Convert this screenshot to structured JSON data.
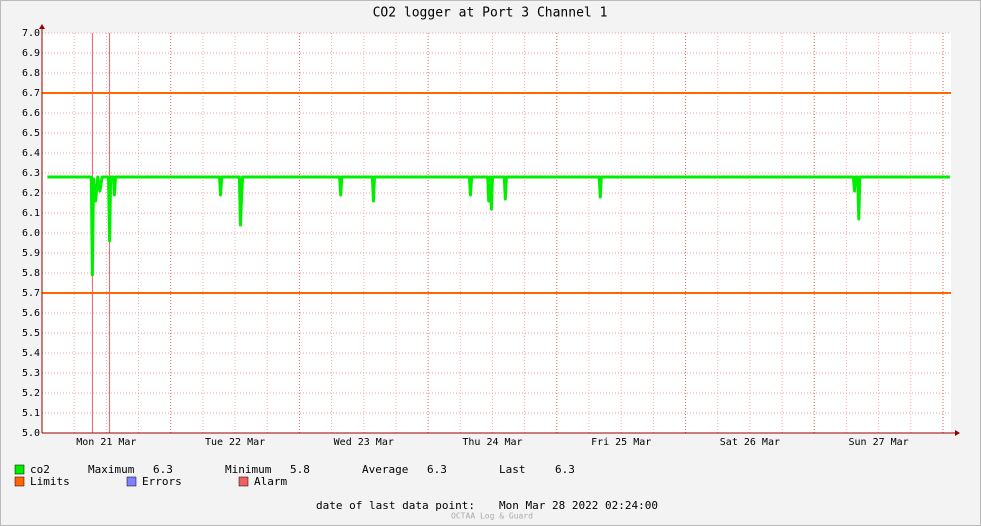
{
  "chart_data": {
    "type": "line",
    "title": "CO2 logger at Port 3 Channel 1",
    "xlim": [
      0,
      169.5
    ],
    "xticks": [
      {
        "value": 12,
        "label": "Mon 21 Mar"
      },
      {
        "value": 36,
        "label": "Tue 22 Mar"
      },
      {
        "value": 60,
        "label": "Wed 23 Mar"
      },
      {
        "value": 84,
        "label": "Thu 24 Mar"
      },
      {
        "value": 108,
        "label": "Fri 25 Mar"
      },
      {
        "value": 132,
        "label": "Sat 26 Mar"
      },
      {
        "value": 156,
        "label": "Sun 27 Mar"
      }
    ],
    "xgrid": [
      0,
      6,
      12,
      18,
      24,
      30,
      36,
      42,
      48,
      54,
      60,
      66,
      72,
      78,
      84,
      90,
      96,
      102,
      108,
      114,
      120,
      126,
      132,
      138,
      144,
      150,
      156,
      162,
      168
    ],
    "ylim": [
      5.0,
      7.0
    ],
    "yticks": [
      {
        "value": 5,
        "label": "5.0"
      },
      5.1,
      5.2,
      5.3,
      5.4,
      5.5,
      5.6,
      5.7,
      5.8,
      5.9,
      {
        "value": 6,
        "label": "6.0"
      },
      6.1,
      6.2,
      6.3,
      6.4,
      6.5,
      6.6,
      6.7,
      6.8,
      6.9,
      {
        "value": 7,
        "label": "7.0"
      }
    ],
    "grid": true,
    "x": [
      1,
      5,
      9.2,
      9.4,
      9.6,
      10,
      10.4,
      10.8,
      11.2,
      12.4,
      12.6,
      12.8,
      13.3,
      13.5,
      13.7,
      17,
      21,
      25,
      29,
      33.1,
      33.3,
      33.5,
      36.8,
      37,
      37.2,
      37.4,
      41,
      45,
      49,
      53,
      55.5,
      55.7,
      55.9,
      59,
      61.6,
      61.8,
      62,
      66,
      70,
      74,
      77,
      79.7,
      79.9,
      80.1,
      83.1,
      83.3,
      83.5,
      83.6,
      83.8,
      84,
      86.2,
      86.4,
      86.6,
      90,
      94,
      98,
      102,
      103.9,
      104.1,
      104.3,
      108,
      112,
      116,
      120,
      124,
      128,
      132,
      136,
      140,
      144,
      148,
      151.3,
      151.5,
      151.7,
      152.1,
      152.3,
      152.5,
      156,
      160,
      164,
      169.3
    ],
    "series": [
      {
        "name": "co2",
        "color": "#00ee00",
        "values": [
          6.28,
          6.28,
          6.28,
          5.79,
          6.27,
          6.16,
          6.28,
          6.21,
          6.28,
          6.28,
          5.96,
          6.28,
          6.28,
          6.19,
          6.28,
          6.28,
          6.28,
          6.28,
          6.28,
          6.28,
          6.19,
          6.28,
          6.28,
          6.04,
          6.17,
          6.28,
          6.28,
          6.28,
          6.28,
          6.28,
          6.28,
          6.19,
          6.28,
          6.28,
          6.28,
          6.16,
          6.28,
          6.28,
          6.28,
          6.28,
          6.28,
          6.28,
          6.19,
          6.28,
          6.28,
          6.16,
          6.28,
          6.28,
          6.12,
          6.28,
          6.28,
          6.17,
          6.28,
          6.28,
          6.28,
          6.28,
          6.28,
          6.28,
          6.18,
          6.28,
          6.28,
          6.28,
          6.28,
          6.28,
          6.28,
          6.28,
          6.28,
          6.28,
          6.28,
          6.28,
          6.28,
          6.28,
          6.21,
          6.28,
          6.28,
          6.07,
          6.28,
          6.28,
          6.28,
          6.28,
          6.28
        ]
      }
    ],
    "limits": {
      "name": "Limits",
      "color": "#ff6600",
      "values": [
        6.7,
        5.7
      ]
    },
    "errors": {
      "name": "Errors",
      "color": "#7f7fff"
    },
    "alarms": {
      "name": "Alarm",
      "color": "#f06060",
      "x": [
        9.4,
        12.6
      ]
    },
    "stats": [
      {
        "label": "Maximum",
        "value": 6.3
      },
      {
        "label": "Minimum",
        "value": 5.8
      },
      {
        "label": "Average",
        "value": 6.3
      },
      {
        "label": "Last",
        "value": 6.3
      }
    ],
    "footer": {
      "label": "date of last data point:",
      "value": "Mon Mar 28 2022 02:24:00"
    },
    "credit": "OCTAA Log & Guard"
  }
}
